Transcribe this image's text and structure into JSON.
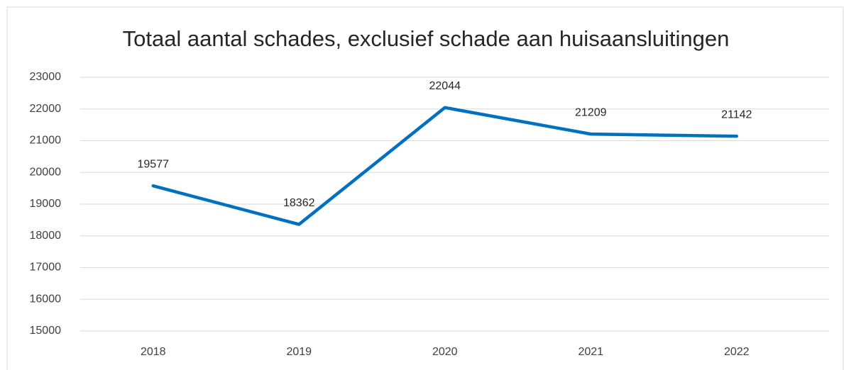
{
  "chart_data": {
    "type": "line",
    "title": "Totaal aantal schades, exclusief schade aan huisaansluitingen",
    "categories": [
      "2018",
      "2019",
      "2020",
      "2021",
      "2022"
    ],
    "series": [
      {
        "name": "Totaal aantal schades",
        "color": "#0070c0",
        "values": [
          19577,
          18362,
          22044,
          21209,
          21142
        ]
      }
    ],
    "ylim": [
      15000,
      23000
    ],
    "yticks": [
      15000,
      16000,
      17000,
      18000,
      19000,
      20000,
      21000,
      22000,
      23000
    ],
    "grid": true
  }
}
